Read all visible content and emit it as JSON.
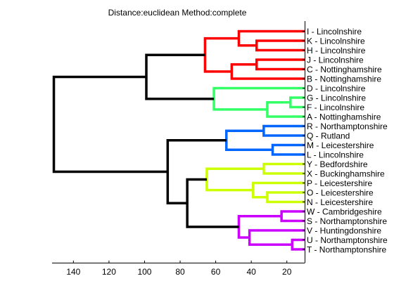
{
  "chart_data": {
    "type": "dendrogram",
    "title": "Distance:euclidean Method:complete",
    "orientation": "right",
    "xlim": [
      152,
      10
    ],
    "xticks": [
      140,
      120,
      100,
      80,
      60,
      40,
      20
    ],
    "leaves": [
      "I - Lincolnshire",
      "K - Lincolnshire",
      "H - Lincolnshire",
      "J - Lincolnshire",
      "C - Nottinghamshire",
      "B - Nottinghamshire",
      "D - Lincolnshire",
      "G - Lincolnshire",
      "F - Lincolnshire",
      "A - Nottinghamshire",
      "R - Northamptonshire",
      "Q - Rutland",
      "M - Leicestershire",
      "L - Lincolnshire",
      "Y - Bedfordshire",
      "X - Buckinghamshire",
      "P - Leicestershire",
      "O - Leicestershire",
      "N - Leicestershire",
      "W - Cambridgeshire",
      "S - Northamptonshire",
      "V - Huntingdonshire",
      "U - Northamptonshire",
      "T - Northamptonshire"
    ],
    "cluster_colors": {
      "red": "#ff0000",
      "green": "#33ff66",
      "blue": "#0066ff",
      "yellow": "#ccff00",
      "purple": "#cc00ff",
      "black": "#000000"
    },
    "merges": [
      {
        "left": 1,
        "right": 2,
        "height": 37,
        "color": "red"
      },
      {
        "left": 0,
        "right": "m0",
        "height": 47,
        "color": "red"
      },
      {
        "left": 3,
        "right": 4,
        "height": 37,
        "color": "red"
      },
      {
        "left": "m2",
        "right": 5,
        "height": 51,
        "color": "red"
      },
      {
        "left": "m1",
        "right": "m3",
        "height": 66,
        "color": "red"
      },
      {
        "left": 7,
        "right": 8,
        "height": 18,
        "color": "green"
      },
      {
        "left": "m5",
        "right": 9,
        "height": 31,
        "color": "green"
      },
      {
        "left": 6,
        "right": "m6",
        "height": 61,
        "color": "green"
      },
      {
        "left": "m4",
        "right": "m7",
        "height": 99,
        "color": "black"
      },
      {
        "left": 12,
        "right": 13,
        "height": 28,
        "color": "blue"
      },
      {
        "left": 10,
        "right": 11,
        "height": 33,
        "color": "blue"
      },
      {
        "left": "m10",
        "right": "m9",
        "height": 54,
        "color": "blue"
      },
      {
        "left": 14,
        "right": 15,
        "height": 33,
        "color": "yellow"
      },
      {
        "left": 17,
        "right": 18,
        "height": 31,
        "color": "yellow"
      },
      {
        "left": 16,
        "right": "m13",
        "height": 39,
        "color": "yellow"
      },
      {
        "left": "m12",
        "right": "m14",
        "height": 65,
        "color": "yellow"
      },
      {
        "left": 19,
        "right": 20,
        "height": 23,
        "color": "purple"
      },
      {
        "left": 22,
        "right": 23,
        "height": 17,
        "color": "purple"
      },
      {
        "left": 21,
        "right": "m17",
        "height": 41,
        "color": "purple"
      },
      {
        "left": "m16",
        "right": "m18",
        "height": 47,
        "color": "purple"
      },
      {
        "left": "m15",
        "right": "m19",
        "height": 76,
        "color": "black"
      },
      {
        "left": "m11",
        "right": "m20",
        "height": 87,
        "color": "black"
      },
      {
        "left": "m8",
        "right": "m21",
        "height": 151,
        "color": "black"
      }
    ]
  }
}
